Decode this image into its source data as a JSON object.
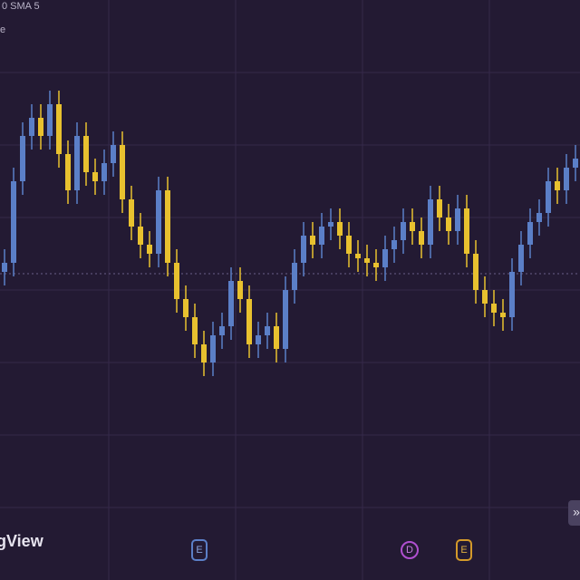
{
  "chart_data": {
    "type": "candlestick",
    "legend_lines": [
      "0 SMA 5",
      "e"
    ],
    "up_color": "#5b7fc7",
    "down_color": "#e8c12f",
    "ylim": [
      0,
      640
    ],
    "open": [
      340,
      350,
      440,
      490,
      510,
      490,
      525,
      470,
      430,
      490,
      450,
      440,
      460,
      480,
      420,
      390,
      370,
      360,
      430,
      350,
      310,
      290,
      260,
      240,
      270,
      280,
      330,
      310,
      260,
      270,
      280,
      255,
      320,
      350,
      380,
      370,
      390,
      395,
      380,
      360,
      355,
      350,
      345,
      365,
      375,
      395,
      385,
      370,
      420,
      400,
      385,
      410,
      360,
      320,
      305,
      295,
      290,
      340,
      370,
      395,
      405,
      440,
      430,
      455
    ],
    "high": [
      365,
      455,
      505,
      525,
      525,
      540,
      540,
      485,
      505,
      505,
      465,
      475,
      495,
      495,
      435,
      405,
      385,
      445,
      445,
      365,
      325,
      305,
      275,
      285,
      295,
      345,
      345,
      325,
      285,
      295,
      295,
      335,
      365,
      395,
      395,
      405,
      410,
      410,
      395,
      375,
      370,
      365,
      380,
      390,
      410,
      410,
      400,
      435,
      435,
      415,
      425,
      425,
      375,
      335,
      320,
      310,
      355,
      385,
      410,
      420,
      455,
      455,
      470,
      480
    ],
    "low": [
      325,
      335,
      425,
      475,
      475,
      475,
      455,
      415,
      415,
      435,
      425,
      425,
      445,
      405,
      375,
      355,
      345,
      345,
      335,
      295,
      275,
      245,
      225,
      225,
      255,
      265,
      295,
      245,
      245,
      255,
      240,
      240,
      305,
      335,
      355,
      355,
      375,
      365,
      345,
      340,
      335,
      330,
      330,
      350,
      360,
      370,
      355,
      355,
      385,
      370,
      370,
      345,
      305,
      290,
      280,
      275,
      275,
      325,
      355,
      380,
      390,
      415,
      415,
      440
    ],
    "close": [
      350,
      440,
      490,
      510,
      490,
      525,
      470,
      430,
      490,
      450,
      440,
      460,
      480,
      420,
      390,
      370,
      360,
      430,
      350,
      310,
      290,
      260,
      240,
      270,
      280,
      330,
      310,
      260,
      270,
      280,
      255,
      320,
      350,
      380,
      370,
      390,
      395,
      380,
      360,
      355,
      350,
      345,
      365,
      375,
      395,
      385,
      370,
      420,
      400,
      385,
      410,
      360,
      320,
      305,
      295,
      290,
      340,
      370,
      395,
      405,
      440,
      430,
      455,
      465
    ]
  },
  "footer": {
    "brand": "gView",
    "markers": [
      "E",
      "D",
      "E"
    ],
    "expand_button": "»"
  }
}
